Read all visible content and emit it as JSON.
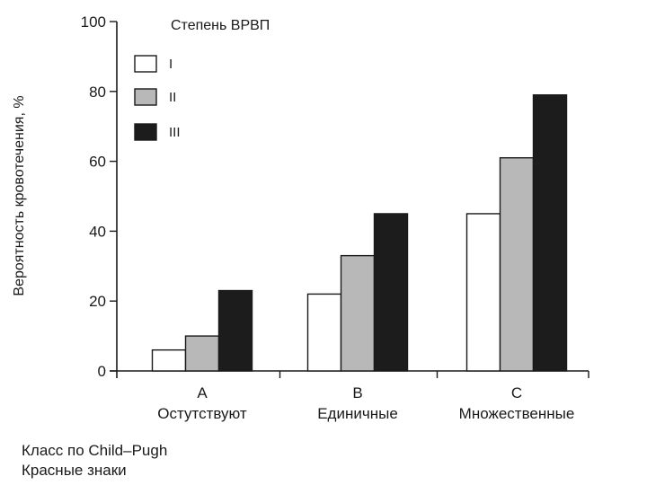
{
  "chart_data": {
    "type": "bar",
    "legend_title": "Степень ВРВП",
    "ylabel": "Вероятность кровотечения, %",
    "ylim": [
      0,
      100
    ],
    "yticks": [
      0,
      20,
      40,
      60,
      80,
      100
    ],
    "grid": false,
    "legend_position": "top-left",
    "categories": [
      "A",
      "B",
      "C"
    ],
    "category_sublabels": [
      "Остутствуют",
      "Единичные",
      "Множественные"
    ],
    "series": [
      {
        "name": "I",
        "color": "#ffffff",
        "values": [
          6,
          22,
          45
        ]
      },
      {
        "name": "II",
        "color": "#b8b8b8",
        "values": [
          10,
          33,
          61
        ]
      },
      {
        "name": "III",
        "color": "#1c1c1c",
        "values": [
          23,
          45,
          79
        ]
      }
    ]
  },
  "footer": {
    "line1": "Класс по Child–Pugh",
    "line2": "Красные знаки"
  }
}
